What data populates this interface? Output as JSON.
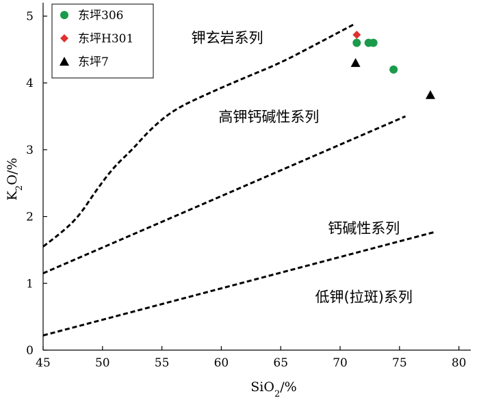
{
  "chart_data": {
    "type": "scatter",
    "xlabel": "SiO2/%",
    "ylabel": "K2O/%",
    "xlim": [
      45,
      81
    ],
    "ylim": [
      0,
      5.2
    ],
    "x_ticks": [
      45,
      50,
      55,
      60,
      65,
      70,
      75,
      80
    ],
    "y_ticks": [
      0,
      1,
      2,
      3,
      4,
      5
    ],
    "series": [
      {
        "name": "东坪306",
        "marker": "circle",
        "color": "#1a9a4a",
        "points": [
          [
            71.4,
            4.6
          ],
          [
            72.4,
            4.6
          ],
          [
            72.8,
            4.6
          ],
          [
            74.5,
            4.2
          ]
        ]
      },
      {
        "name": "东坪H301",
        "marker": "diamond",
        "color": "#e03030",
        "points": [
          [
            71.4,
            4.72
          ]
        ]
      },
      {
        "name": "东坪7",
        "marker": "triangle",
        "color": "#000000",
        "points": [
          [
            71.3,
            4.3
          ],
          [
            77.6,
            3.82
          ]
        ]
      }
    ],
    "boundaries": [
      {
        "points": [
          [
            45,
            1.55
          ],
          [
            46.5,
            1.75
          ],
          [
            48,
            2.0
          ],
          [
            49.5,
            2.4
          ],
          [
            51,
            2.75
          ],
          [
            52.5,
            3.0
          ],
          [
            54,
            3.3
          ],
          [
            56,
            3.6
          ],
          [
            59,
            3.85
          ],
          [
            62,
            4.08
          ],
          [
            65,
            4.3
          ],
          [
            68,
            4.58
          ],
          [
            71.2,
            4.88
          ]
        ]
      },
      {
        "points": [
          [
            45,
            1.15
          ],
          [
            75.5,
            3.5
          ]
        ]
      },
      {
        "points": [
          [
            45,
            0.22
          ],
          [
            78,
            1.77
          ]
        ]
      }
    ],
    "region_labels": [
      {
        "text": "钾玄岩系列",
        "x": 60.5,
        "y": 4.6
      },
      {
        "text": "高钾钙碱性系列",
        "x": 64,
        "y": 3.42
      },
      {
        "text": "钙碱性系列",
        "x": 72,
        "y": 1.75
      },
      {
        "text": "低钾(拉斑)系列",
        "x": 72,
        "y": 0.72
      }
    ],
    "legend": {
      "position": "top-left"
    }
  }
}
